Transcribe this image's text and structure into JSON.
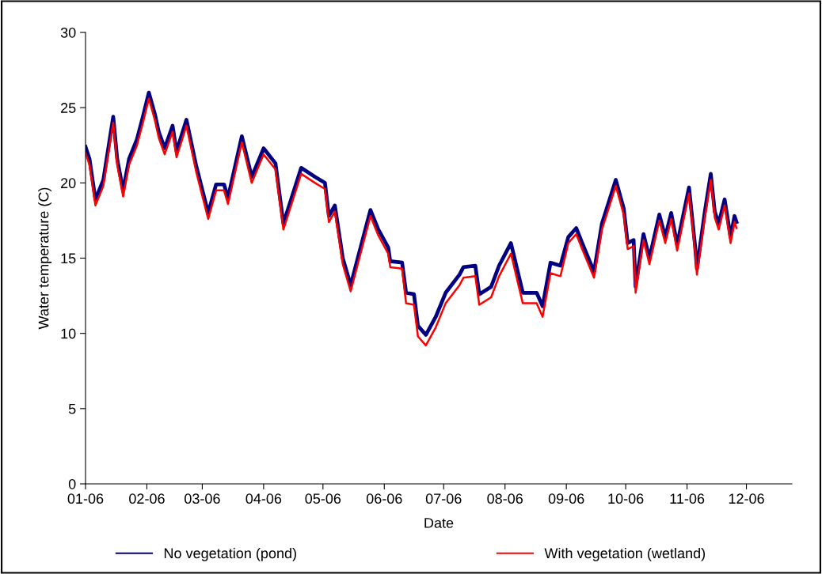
{
  "chart_data": {
    "type": "line",
    "xlabel": "Date",
    "ylabel": "Water temperature (C)",
    "x": [
      "2006-01-01",
      "2006-01-03",
      "2006-01-06",
      "2006-01-10",
      "2006-01-15",
      "2006-01-17",
      "2006-01-20",
      "2006-01-23",
      "2006-01-27",
      "2006-01-30",
      "2006-02-02",
      "2006-02-05",
      "2006-02-07",
      "2006-02-10",
      "2006-02-14",
      "2006-02-16",
      "2006-02-21",
      "2006-02-26",
      "2006-03-04",
      "2006-03-08",
      "2006-03-12",
      "2006-03-14",
      "2006-03-21",
      "2006-03-26",
      "2006-04-01",
      "2006-04-07",
      "2006-04-11",
      "2006-04-20",
      "2006-04-27",
      "2006-05-02",
      "2006-05-04",
      "2006-05-07",
      "2006-05-10",
      "2006-05-11",
      "2006-05-15",
      "2006-05-19",
      "2006-05-25",
      "2006-05-29",
      "2006-06-03",
      "2006-06-04",
      "2006-06-10",
      "2006-06-12",
      "2006-06-16",
      "2006-06-18",
      "2006-06-22",
      "2006-06-27",
      "2006-07-02",
      "2006-07-09",
      "2006-07-11",
      "2006-07-17",
      "2006-07-19",
      "2006-07-25",
      "2006-07-29",
      "2006-08-04",
      "2006-08-10",
      "2006-08-17",
      "2006-08-20",
      "2006-08-24",
      "2006-08-29",
      "2006-09-02",
      "2006-09-06",
      "2006-09-09",
      "2006-09-15",
      "2006-09-19",
      "2006-09-26",
      "2006-09-30",
      "2006-10-02",
      "2006-10-05",
      "2006-10-06",
      "2006-10-10",
      "2006-10-13",
      "2006-10-18",
      "2006-10-21",
      "2006-10-24",
      "2006-10-27",
      "2006-10-30",
      "2006-11-02",
      "2006-11-05",
      "2006-11-06",
      "2006-11-10",
      "2006-11-13",
      "2006-11-15",
      "2006-11-17",
      "2006-11-20",
      "2006-11-23",
      "2006-11-25",
      "2006-11-26"
    ],
    "series": [
      {
        "name": "No vegetation (pond)",
        "color": "#000080",
        "values": [
          22.4,
          21.6,
          18.9,
          20.2,
          24.4,
          21.6,
          19.5,
          21.6,
          22.9,
          24.4,
          26.0,
          24.6,
          23.4,
          22.3,
          23.8,
          22.1,
          24.2,
          21.1,
          18.0,
          19.9,
          19.9,
          19.0,
          23.1,
          20.4,
          22.3,
          21.3,
          17.3,
          21.0,
          20.4,
          20.0,
          17.8,
          18.5,
          15.9,
          15.0,
          13.2,
          15.2,
          18.2,
          16.9,
          15.7,
          14.8,
          14.7,
          12.7,
          12.6,
          10.5,
          9.9,
          11.1,
          12.7,
          13.9,
          14.4,
          14.5,
          12.6,
          13.1,
          14.5,
          16.0,
          12.7,
          12.7,
          11.8,
          14.7,
          14.5,
          16.4,
          17.0,
          16.0,
          14.1,
          17.3,
          20.2,
          18.3,
          16.0,
          16.2,
          13.1,
          16.6,
          15.0,
          17.9,
          16.4,
          18.0,
          15.9,
          17.8,
          19.7,
          15.9,
          14.3,
          18.1,
          20.6,
          18.1,
          17.3,
          18.9,
          16.4,
          17.8,
          17.4
        ]
      },
      {
        "name": "With vegetation (wetland)",
        "color": "#ff0000",
        "values": [
          22.0,
          21.2,
          18.5,
          19.8,
          24.0,
          21.2,
          19.1,
          21.2,
          22.5,
          24.0,
          25.6,
          24.2,
          23.0,
          21.9,
          23.4,
          21.7,
          23.8,
          20.7,
          17.6,
          19.5,
          19.5,
          18.6,
          22.7,
          20.0,
          21.9,
          20.9,
          16.9,
          20.6,
          20.0,
          19.6,
          17.4,
          18.1,
          15.5,
          14.6,
          12.8,
          14.8,
          17.8,
          16.5,
          15.3,
          14.4,
          14.3,
          12.0,
          11.9,
          9.8,
          9.2,
          10.4,
          12.0,
          13.2,
          13.7,
          13.8,
          11.9,
          12.4,
          13.8,
          15.3,
          12.0,
          12.0,
          11.1,
          14.0,
          13.8,
          16.0,
          16.6,
          15.6,
          13.7,
          16.9,
          19.8,
          17.9,
          15.6,
          15.8,
          12.7,
          16.2,
          14.6,
          17.5,
          16.0,
          17.6,
          15.5,
          17.4,
          19.3,
          15.5,
          13.9,
          17.7,
          20.2,
          17.7,
          16.9,
          18.5,
          16.0,
          17.4,
          17.0
        ]
      }
    ],
    "xlim": [
      "2006-01-01",
      "2006-12-24"
    ],
    "xticks": [
      {
        "value": "2006-01-01",
        "label": "01-06"
      },
      {
        "value": "2006-02-01",
        "label": "02-06"
      },
      {
        "value": "2006-03-01",
        "label": "03-06"
      },
      {
        "value": "2006-04-01",
        "label": "04-06"
      },
      {
        "value": "2006-05-01",
        "label": "05-06"
      },
      {
        "value": "2006-06-01",
        "label": "06-06"
      },
      {
        "value": "2006-07-01",
        "label": "07-06"
      },
      {
        "value": "2006-08-01",
        "label": "08-06"
      },
      {
        "value": "2006-09-01",
        "label": "09-06"
      },
      {
        "value": "2006-10-01",
        "label": "10-06"
      },
      {
        "value": "2006-11-01",
        "label": "11-06"
      },
      {
        "value": "2006-12-01",
        "label": "12-06"
      }
    ],
    "ylim": [
      0,
      30
    ],
    "yticks": [
      0,
      5,
      10,
      15,
      20,
      25,
      30
    ],
    "grid": false,
    "legend": "bottom",
    "marker": "none",
    "line_style": "solid"
  }
}
